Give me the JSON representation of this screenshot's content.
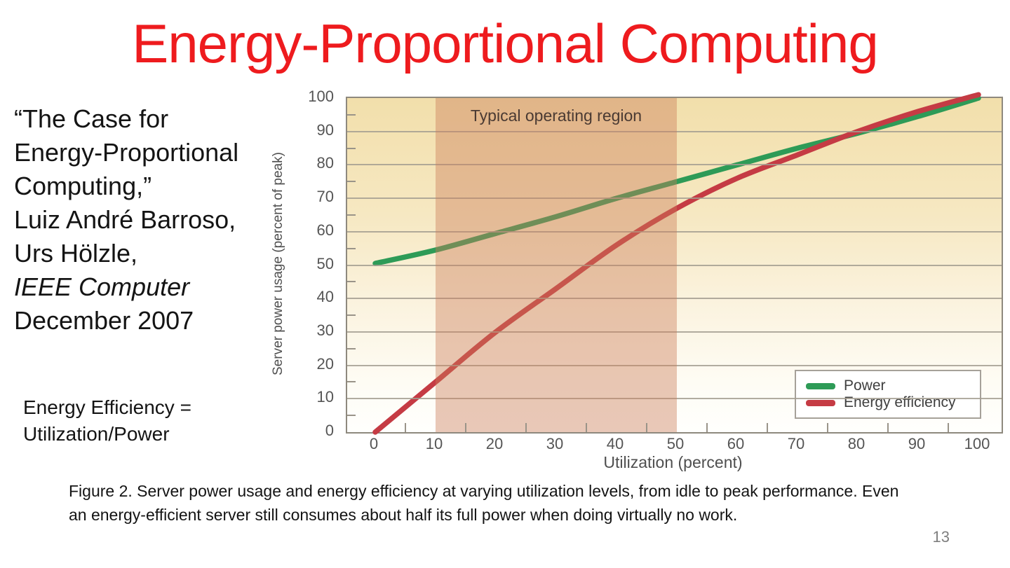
{
  "slide": {
    "title": "Energy-Proportional Computing",
    "title_color": "#ee1b1e",
    "citation": {
      "quote_lines": [
        "“The Case for",
        "Energy-Proportional",
        "Computing,”"
      ],
      "authors": [
        "Luiz André Barroso,",
        "Urs Hölzle,"
      ],
      "journal": "IEEE Computer",
      "date": "December 2007"
    },
    "formula": {
      "line1": "Energy Efficiency =",
      "line2": "Utilization/Power"
    },
    "caption": "Figure 2. Server power usage and energy efficiency at varying utilization levels, from idle to peak performance. Even an energy-efficient server still consumes about half its full power when doing virtually no work.",
    "page_number": "13"
  },
  "chart_data": {
    "type": "line",
    "xlabel": "Utilization (percent)",
    "ylabel": "Server power usage (percent of peak)",
    "xlim": [
      0,
      100
    ],
    "ylim": [
      0,
      100
    ],
    "x_ticks": [
      0,
      10,
      20,
      30,
      40,
      50,
      60,
      70,
      80,
      90,
      100
    ],
    "y_ticks": [
      0,
      10,
      20,
      30,
      40,
      50,
      60,
      70,
      80,
      90,
      100
    ],
    "grid": "horizontal",
    "legend_position": "bottom-right",
    "x": [
      0,
      10,
      20,
      30,
      40,
      50,
      60,
      70,
      80,
      90,
      100
    ],
    "series": [
      {
        "name": "Power",
        "color": "#2e9b57",
        "values": [
          50.5,
          54.5,
          59.5,
          64.5,
          70,
          75,
          80,
          85,
          89.5,
          94.5,
          100
        ]
      },
      {
        "name": "Energy efficiency",
        "color": "#c53b44",
        "values": [
          0,
          15,
          30,
          43,
          56,
          67,
          76,
          83,
          90,
          96,
          101
        ]
      }
    ],
    "band": {
      "from": 10,
      "to": 50,
      "label": "Typical operating region",
      "color": "rgba(203,124,88,0.42)"
    }
  }
}
